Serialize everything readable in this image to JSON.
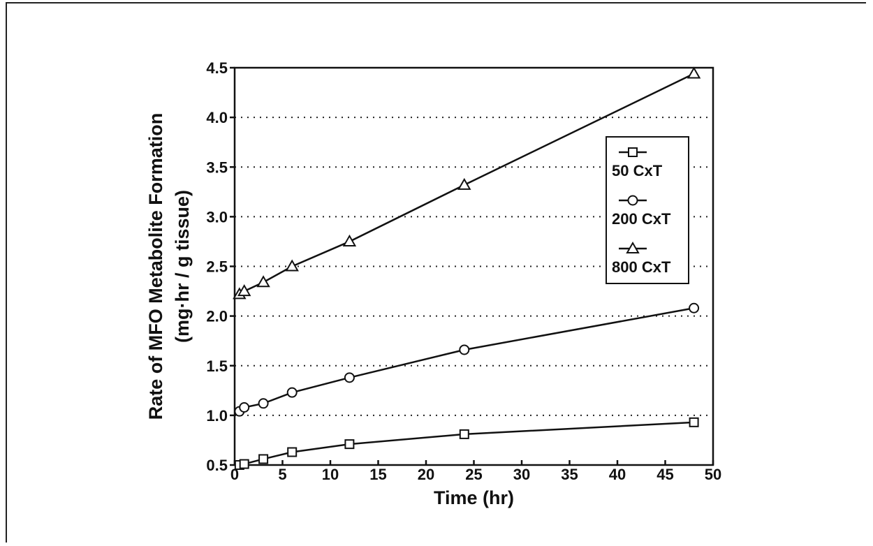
{
  "chart_data": {
    "type": "line",
    "title": "",
    "xlabel": "Time (hr)",
    "ylabel": "Rate of MFO Metabolite Formation",
    "ylabel_units": "(mg·hr / g tissue)",
    "xlim": [
      0,
      50
    ],
    "ylim": [
      0.5,
      4.5
    ],
    "xticks": [
      0,
      5,
      10,
      15,
      20,
      25,
      30,
      35,
      40,
      45,
      50
    ],
    "yticks": [
      0.5,
      1.0,
      1.5,
      2.0,
      2.5,
      3.0,
      3.5,
      4.0,
      4.5
    ],
    "xtick_labels": [
      "0",
      "5",
      "10",
      "15",
      "20",
      "25",
      "30",
      "35",
      "40",
      "45",
      "50"
    ],
    "ytick_labels": [
      "0.5",
      "1.0",
      "1.5",
      "2.0",
      "2.5",
      "3.0",
      "3.5",
      "4.0",
      "4.5"
    ],
    "grid": "horizontal-dotted",
    "legend_position": "right",
    "series": [
      {
        "name": "50 CxT",
        "marker": "square",
        "x": [
          0.5,
          1,
          3,
          6,
          12,
          24,
          48
        ],
        "y": [
          0.5,
          0.51,
          0.56,
          0.63,
          0.71,
          0.81,
          0.93
        ]
      },
      {
        "name": "200 CxT",
        "marker": "circle",
        "x": [
          0.5,
          1,
          3,
          6,
          12,
          24,
          48
        ],
        "y": [
          1.04,
          1.08,
          1.12,
          1.23,
          1.38,
          1.66,
          2.08
        ]
      },
      {
        "name": "800 CxT",
        "marker": "triangle",
        "x": [
          0.5,
          1,
          3,
          6,
          12,
          24,
          48
        ],
        "y": [
          2.22,
          2.25,
          2.34,
          2.5,
          2.75,
          3.32,
          4.44
        ]
      }
    ]
  }
}
